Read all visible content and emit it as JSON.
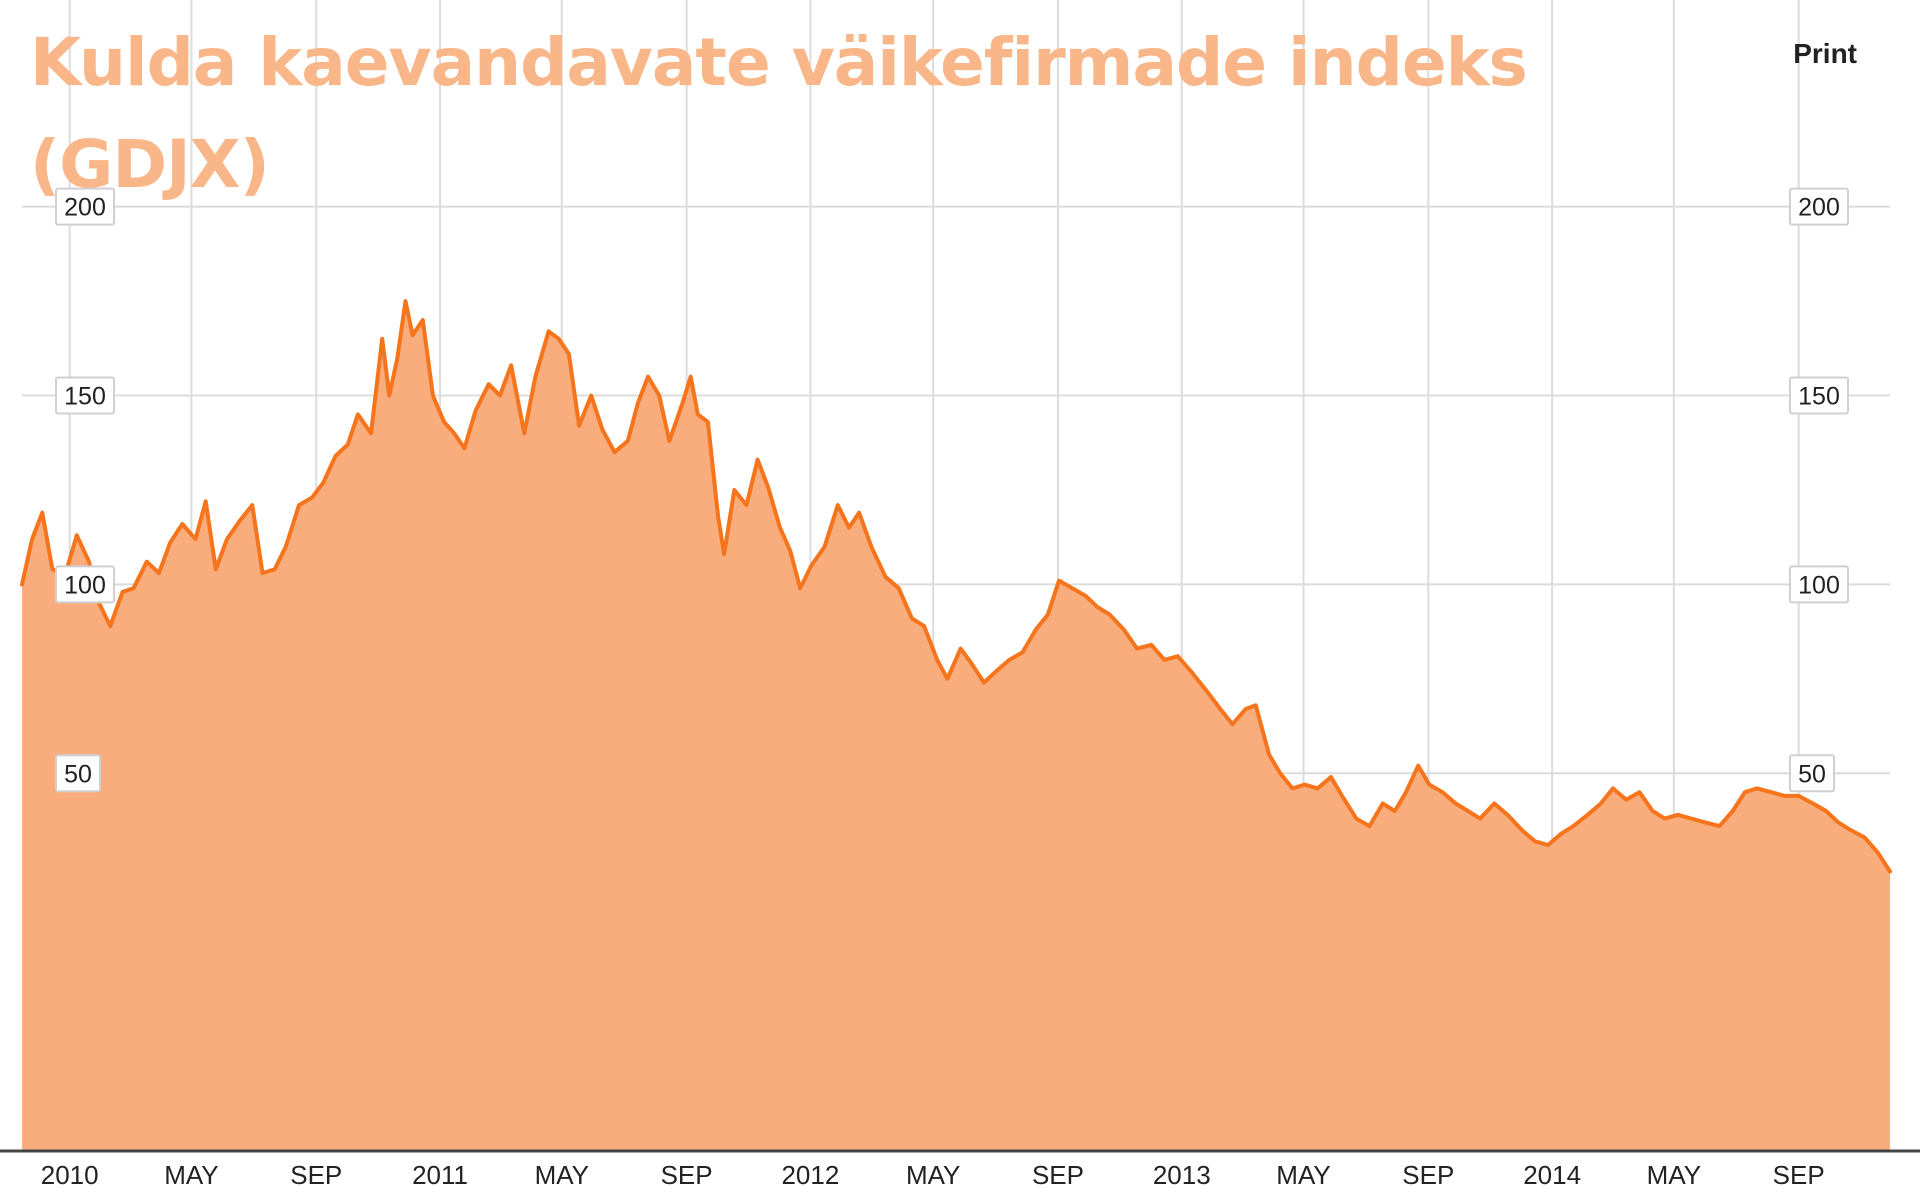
{
  "title": "Kulda kaevandavate väikefirmade indeks (GDJX)",
  "toolbar": {
    "print_label": "Print"
  },
  "colors": {
    "line": "#f5741c",
    "fill": "#f9ac7c",
    "title": "#f9b688",
    "grid": "#dcdcdc"
  },
  "chart_data": {
    "type": "area",
    "title": "Kulda kaevandavate väikefirmade indeks (GDJX)",
    "xlabel": "",
    "ylabel": "",
    "ylim": [
      -50,
      215
    ],
    "yticks": [
      50,
      100,
      150,
      200
    ],
    "grid": true,
    "legend": "none",
    "x_ticks": [
      {
        "label": "2010",
        "date": "2010-01-01"
      },
      {
        "label": "MAY",
        "date": "2010-05-01"
      },
      {
        "label": "SEP",
        "date": "2010-09-01"
      },
      {
        "label": "2011",
        "date": "2011-01-01"
      },
      {
        "label": "MAY",
        "date": "2011-05-01"
      },
      {
        "label": "SEP",
        "date": "2011-09-01"
      },
      {
        "label": "2012",
        "date": "2012-01-01"
      },
      {
        "label": "MAY",
        "date": "2012-05-01"
      },
      {
        "label": "SEP",
        "date": "2012-09-01"
      },
      {
        "label": "2013",
        "date": "2013-01-01"
      },
      {
        "label": "MAY",
        "date": "2013-05-01"
      },
      {
        "label": "SEP",
        "date": "2013-09-01"
      },
      {
        "label": "2014",
        "date": "2014-01-01"
      },
      {
        "label": "MAY",
        "date": "2014-05-01"
      },
      {
        "label": "SEP",
        "date": "2014-09-01"
      }
    ],
    "x_range": [
      "2009-11-15",
      "2014-11-30"
    ],
    "series": [
      {
        "points": [
          [
            "2009-11-15",
            100
          ],
          [
            "2009-11-25",
            112
          ],
          [
            "2009-12-05",
            119
          ],
          [
            "2009-12-15",
            104
          ],
          [
            "2009-12-28",
            103
          ],
          [
            "2010-01-08",
            113
          ],
          [
            "2010-01-20",
            106
          ],
          [
            "2010-01-30",
            95
          ],
          [
            "2010-02-10",
            89
          ],
          [
            "2010-02-22",
            98
          ],
          [
            "2010-03-05",
            99
          ],
          [
            "2010-03-18",
            106
          ],
          [
            "2010-03-30",
            103
          ],
          [
            "2010-04-10",
            111
          ],
          [
            "2010-04-22",
            116
          ],
          [
            "2010-05-05",
            112
          ],
          [
            "2010-05-15",
            122
          ],
          [
            "2010-05-25",
            104
          ],
          [
            "2010-06-05",
            112
          ],
          [
            "2010-06-18",
            117
          ],
          [
            "2010-06-30",
            121
          ],
          [
            "2010-07-10",
            103
          ],
          [
            "2010-07-22",
            104
          ],
          [
            "2010-08-02",
            110
          ],
          [
            "2010-08-15",
            121
          ],
          [
            "2010-08-28",
            123
          ],
          [
            "2010-09-08",
            127
          ],
          [
            "2010-09-20",
            134
          ],
          [
            "2010-10-02",
            137
          ],
          [
            "2010-10-12",
            145
          ],
          [
            "2010-10-25",
            140
          ],
          [
            "2010-11-05",
            165
          ],
          [
            "2010-11-12",
            150
          ],
          [
            "2010-11-20",
            160
          ],
          [
            "2010-11-28",
            175
          ],
          [
            "2010-12-05",
            166
          ],
          [
            "2010-12-15",
            170
          ],
          [
            "2010-12-25",
            150
          ],
          [
            "2011-01-05",
            143
          ],
          [
            "2011-01-15",
            140
          ],
          [
            "2011-01-25",
            136
          ],
          [
            "2011-02-05",
            146
          ],
          [
            "2011-02-18",
            153
          ],
          [
            "2011-03-01",
            150
          ],
          [
            "2011-03-12",
            158
          ],
          [
            "2011-03-25",
            140
          ],
          [
            "2011-04-05",
            155
          ],
          [
            "2011-04-18",
            167
          ],
          [
            "2011-04-28",
            165
          ],
          [
            "2011-05-08",
            161
          ],
          [
            "2011-05-18",
            142
          ],
          [
            "2011-05-30",
            150
          ],
          [
            "2011-06-10",
            141
          ],
          [
            "2011-06-22",
            135
          ],
          [
            "2011-07-05",
            138
          ],
          [
            "2011-07-15",
            148
          ],
          [
            "2011-07-25",
            155
          ],
          [
            "2011-08-05",
            150
          ],
          [
            "2011-08-15",
            138
          ],
          [
            "2011-08-28",
            148
          ],
          [
            "2011-09-05",
            155
          ],
          [
            "2011-09-12",
            145
          ],
          [
            "2011-09-22",
            143
          ],
          [
            "2011-10-02",
            118
          ],
          [
            "2011-10-08",
            108
          ],
          [
            "2011-10-18",
            125
          ],
          [
            "2011-10-30",
            121
          ],
          [
            "2011-11-10",
            133
          ],
          [
            "2011-11-20",
            126
          ],
          [
            "2011-12-02",
            115
          ],
          [
            "2011-12-12",
            109
          ],
          [
            "2011-12-22",
            99
          ],
          [
            "2012-01-02",
            105
          ],
          [
            "2012-01-15",
            110
          ],
          [
            "2012-01-28",
            121
          ],
          [
            "2012-02-08",
            115
          ],
          [
            "2012-02-18",
            119
          ],
          [
            "2012-03-01",
            110
          ],
          [
            "2012-03-15",
            102
          ],
          [
            "2012-03-28",
            99
          ],
          [
            "2012-04-10",
            91
          ],
          [
            "2012-04-22",
            89
          ],
          [
            "2012-05-05",
            80
          ],
          [
            "2012-05-15",
            75
          ],
          [
            "2012-05-28",
            83
          ],
          [
            "2012-06-08",
            79
          ],
          [
            "2012-06-20",
            74
          ],
          [
            "2012-07-02",
            77
          ],
          [
            "2012-07-15",
            80
          ],
          [
            "2012-07-28",
            82
          ],
          [
            "2012-08-10",
            88
          ],
          [
            "2012-08-22",
            92
          ],
          [
            "2012-09-02",
            101
          ],
          [
            "2012-09-15",
            99
          ],
          [
            "2012-09-28",
            97
          ],
          [
            "2012-10-10",
            94
          ],
          [
            "2012-10-22",
            92
          ],
          [
            "2012-11-05",
            88
          ],
          [
            "2012-11-18",
            83
          ],
          [
            "2012-12-02",
            84
          ],
          [
            "2012-12-15",
            80
          ],
          [
            "2012-12-28",
            81
          ],
          [
            "2013-01-10",
            77
          ],
          [
            "2013-01-25",
            72
          ],
          [
            "2013-02-08",
            67
          ],
          [
            "2013-02-20",
            63
          ],
          [
            "2013-03-05",
            67
          ],
          [
            "2013-03-15",
            68
          ],
          [
            "2013-03-28",
            55
          ],
          [
            "2013-04-08",
            50
          ],
          [
            "2013-04-20",
            46
          ],
          [
            "2013-05-02",
            47
          ],
          [
            "2013-05-15",
            46
          ],
          [
            "2013-05-28",
            49
          ],
          [
            "2013-06-08",
            44
          ],
          [
            "2013-06-22",
            38
          ],
          [
            "2013-07-05",
            36
          ],
          [
            "2013-07-18",
            42
          ],
          [
            "2013-07-30",
            40
          ],
          [
            "2013-08-10",
            45
          ],
          [
            "2013-08-22",
            52
          ],
          [
            "2013-09-02",
            47
          ],
          [
            "2013-09-15",
            45
          ],
          [
            "2013-09-28",
            42
          ],
          [
            "2013-10-10",
            40
          ],
          [
            "2013-10-22",
            38
          ],
          [
            "2013-11-05",
            42
          ],
          [
            "2013-11-18",
            39
          ],
          [
            "2013-12-02",
            35
          ],
          [
            "2013-12-15",
            32
          ],
          [
            "2013-12-28",
            31
          ],
          [
            "2014-01-10",
            34
          ],
          [
            "2014-01-22",
            36
          ],
          [
            "2014-02-05",
            39
          ],
          [
            "2014-02-18",
            42
          ],
          [
            "2014-03-02",
            46
          ],
          [
            "2014-03-15",
            43
          ],
          [
            "2014-03-28",
            45
          ],
          [
            "2014-04-10",
            40
          ],
          [
            "2014-04-22",
            38
          ],
          [
            "2014-05-05",
            39
          ],
          [
            "2014-05-18",
            38
          ],
          [
            "2014-06-01",
            37
          ],
          [
            "2014-06-15",
            36
          ],
          [
            "2014-06-28",
            40
          ],
          [
            "2014-07-10",
            45
          ],
          [
            "2014-07-22",
            46
          ],
          [
            "2014-08-05",
            45
          ],
          [
            "2014-08-18",
            44
          ],
          [
            "2014-09-01",
            44
          ],
          [
            "2014-09-15",
            42
          ],
          [
            "2014-09-28",
            40
          ],
          [
            "2014-10-10",
            37
          ],
          [
            "2014-10-22",
            35
          ],
          [
            "2014-11-05",
            33
          ],
          [
            "2014-11-18",
            29
          ],
          [
            "2014-11-30",
            24
          ]
        ]
      }
    ]
  }
}
